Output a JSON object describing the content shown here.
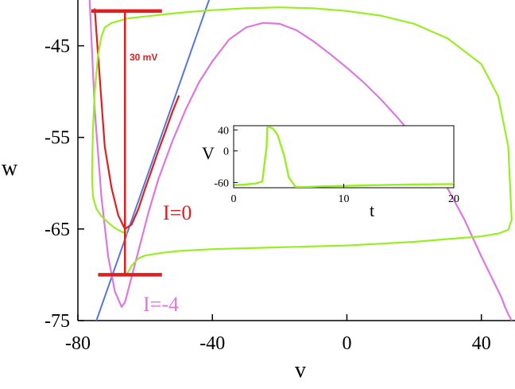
{
  "chart_data": [
    {
      "type": "line",
      "xlabel": "v",
      "ylabel": "w",
      "xlim": [
        -80,
        50
      ],
      "ylim": [
        -75,
        -40
      ],
      "x_ticks": [
        -80,
        -40,
        0,
        40
      ],
      "y_ticks": [
        -45,
        -55,
        -65,
        -75
      ],
      "grid": false,
      "colors": {
        "trajectory": "#99ee22",
        "nullcline_I0": "#dd1f1f",
        "nullcline_I_neg4": "#dd77dd",
        "w_nullcline": "#5577dd",
        "scale_bar": "#dd1f1f",
        "axes": "#000000"
      },
      "series": [
        {
          "name": "I=0",
          "role": "v-nullcline",
          "x": [
            -75,
            -72,
            -70,
            -68,
            -66,
            -64,
            -62,
            -60,
            -58,
            -56,
            -54,
            -52,
            -50
          ],
          "y": [
            -41,
            -56,
            -60.5,
            -63.5,
            -65,
            -64.5,
            -62.8,
            -60.6,
            -58.5,
            -56.4,
            -54.4,
            -52.3,
            -50.5
          ]
        },
        {
          "name": "I=-4",
          "x": [
            -76.5,
            -75,
            -73,
            -71,
            -69,
            -67,
            -66,
            -65,
            -63,
            -61,
            -59,
            -56,
            -52,
            -48,
            -44,
            -40,
            -35,
            -30,
            -25,
            -20,
            -15,
            -10,
            -5,
            0,
            5,
            10,
            15,
            20,
            25,
            30,
            35,
            40,
            44,
            46,
            47,
            48,
            49
          ],
          "y": [
            -40,
            -52,
            -61.5,
            -68,
            -71.8,
            -73.5,
            -73,
            -71.6,
            -68.8,
            -66,
            -63.2,
            -59.5,
            -55.5,
            -52,
            -49,
            -46.7,
            -44.3,
            -43,
            -42.5,
            -42.6,
            -43.3,
            -44.5,
            -45.9,
            -47.4,
            -49,
            -50.8,
            -52.8,
            -55,
            -57.6,
            -60.6,
            -64,
            -68,
            -71,
            -72.5,
            -73.5,
            -74.3,
            -75
          ]
        },
        {
          "name": "",
          "role": "w-nullcline",
          "x": [
            -74.5,
            -41
          ],
          "y": [
            -75,
            -40
          ]
        },
        {
          "name": "",
          "role": "trajectory",
          "x": [
            -65.5,
            -64,
            -62,
            -60,
            -55,
            -50,
            -40,
            -30,
            -20,
            -10,
            0,
            10,
            20,
            30,
            40,
            45,
            48,
            49,
            48,
            45,
            40,
            30,
            20,
            10,
            0,
            -10,
            -20,
            -30,
            -40,
            -50,
            -60,
            -65,
            -70,
            -72,
            -73,
            -74,
            -75,
            -75.5,
            -75.7,
            -75.8,
            -75.5,
            -74.5,
            -73,
            -71,
            -69,
            -67,
            -65.5
          ],
          "y": [
            -70,
            -69,
            -68.2,
            -67.9,
            -67.6,
            -67.4,
            -67.2,
            -67.1,
            -67,
            -66.9,
            -66.8,
            -66.6,
            -66.4,
            -66.1,
            -65.8,
            -65.5,
            -65.1,
            -64,
            -56,
            -50.5,
            -47,
            -44.2,
            -42.6,
            -41.7,
            -41.2,
            -40.9,
            -40.8,
            -40.9,
            -41.1,
            -41.4,
            -41.8,
            -42,
            -42.5,
            -43,
            -44,
            -46,
            -50,
            -54,
            -57,
            -59.5,
            -61.5,
            -62.8,
            -63.6,
            -64.3,
            -64.9,
            -65.3,
            -65.5
          ]
        }
      ],
      "annotations": [
        {
          "text": "30 mV",
          "role": "scale-bar",
          "v": -66,
          "w_from": -41.2,
          "w_to": -70
        },
        {
          "text": "I=0"
        },
        {
          "text": "I=-4"
        }
      ],
      "scale_bar": {
        "top": {
          "v_from": -76,
          "v_to": -55,
          "w": -41.2
        },
        "bottom": {
          "v_from": -74,
          "v_to": -55,
          "w": -70
        }
      }
    },
    {
      "type": "line",
      "role": "inset",
      "xlabel": "t",
      "ylabel": "V",
      "xlim": [
        0,
        20
      ],
      "ylim": [
        -70,
        48
      ],
      "x_ticks": [
        0,
        10,
        20
      ],
      "y_ticks": [
        40,
        0,
        -60
      ],
      "series": [
        {
          "name": "",
          "x": [
            0,
            1,
            2,
            2.6,
            3.0,
            3.05,
            3.2,
            3.6,
            4.0,
            4.6,
            5.0,
            5.6,
            6.0,
            8,
            10,
            12,
            14,
            16,
            18,
            20
          ],
          "y": [
            -65,
            -64,
            -62,
            -58,
            10,
            44,
            46,
            42,
            30,
            -10,
            -50,
            -68,
            -69,
            -67.5,
            -66.5,
            -65.5,
            -64.5,
            -64,
            -63.5,
            -63
          ]
        }
      ]
    }
  ]
}
